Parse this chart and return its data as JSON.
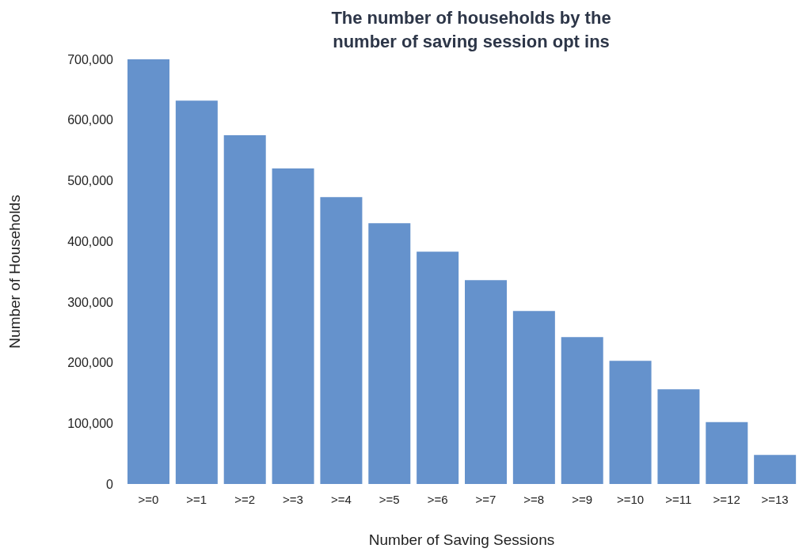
{
  "chart_data": {
    "type": "bar",
    "title": "The number of households by the number of saving session opt ins",
    "xlabel": "Number of Saving Sessions",
    "ylabel": "Number of Households",
    "categories": [
      ">=0",
      ">=1",
      ">=2",
      ">=3",
      ">=4",
      ">=5",
      ">=6",
      ">=7",
      ">=8",
      ">=9",
      ">=10",
      ">=11",
      ">=12",
      ">=13"
    ],
    "values": [
      700000,
      632000,
      575000,
      520000,
      473000,
      430000,
      383000,
      336000,
      285000,
      242000,
      203000,
      156000,
      102000,
      48000
    ],
    "color": "#6592cc",
    "ylim": [
      0,
      700000
    ],
    "yticks": [
      0,
      {
        "value": 100000,
        "label": "100,000"
      },
      {
        "value": 200000,
        "label": "200,000"
      },
      {
        "value": 300000,
        "label": "300,000"
      },
      {
        "value": 400000,
        "label": "400,000"
      },
      {
        "value": 500000,
        "label": "500,000"
      },
      {
        "value": 600000,
        "label": "600,000"
      },
      {
        "value": 700000,
        "label": "700,000"
      }
    ],
    "grid": false,
    "legend": false
  }
}
